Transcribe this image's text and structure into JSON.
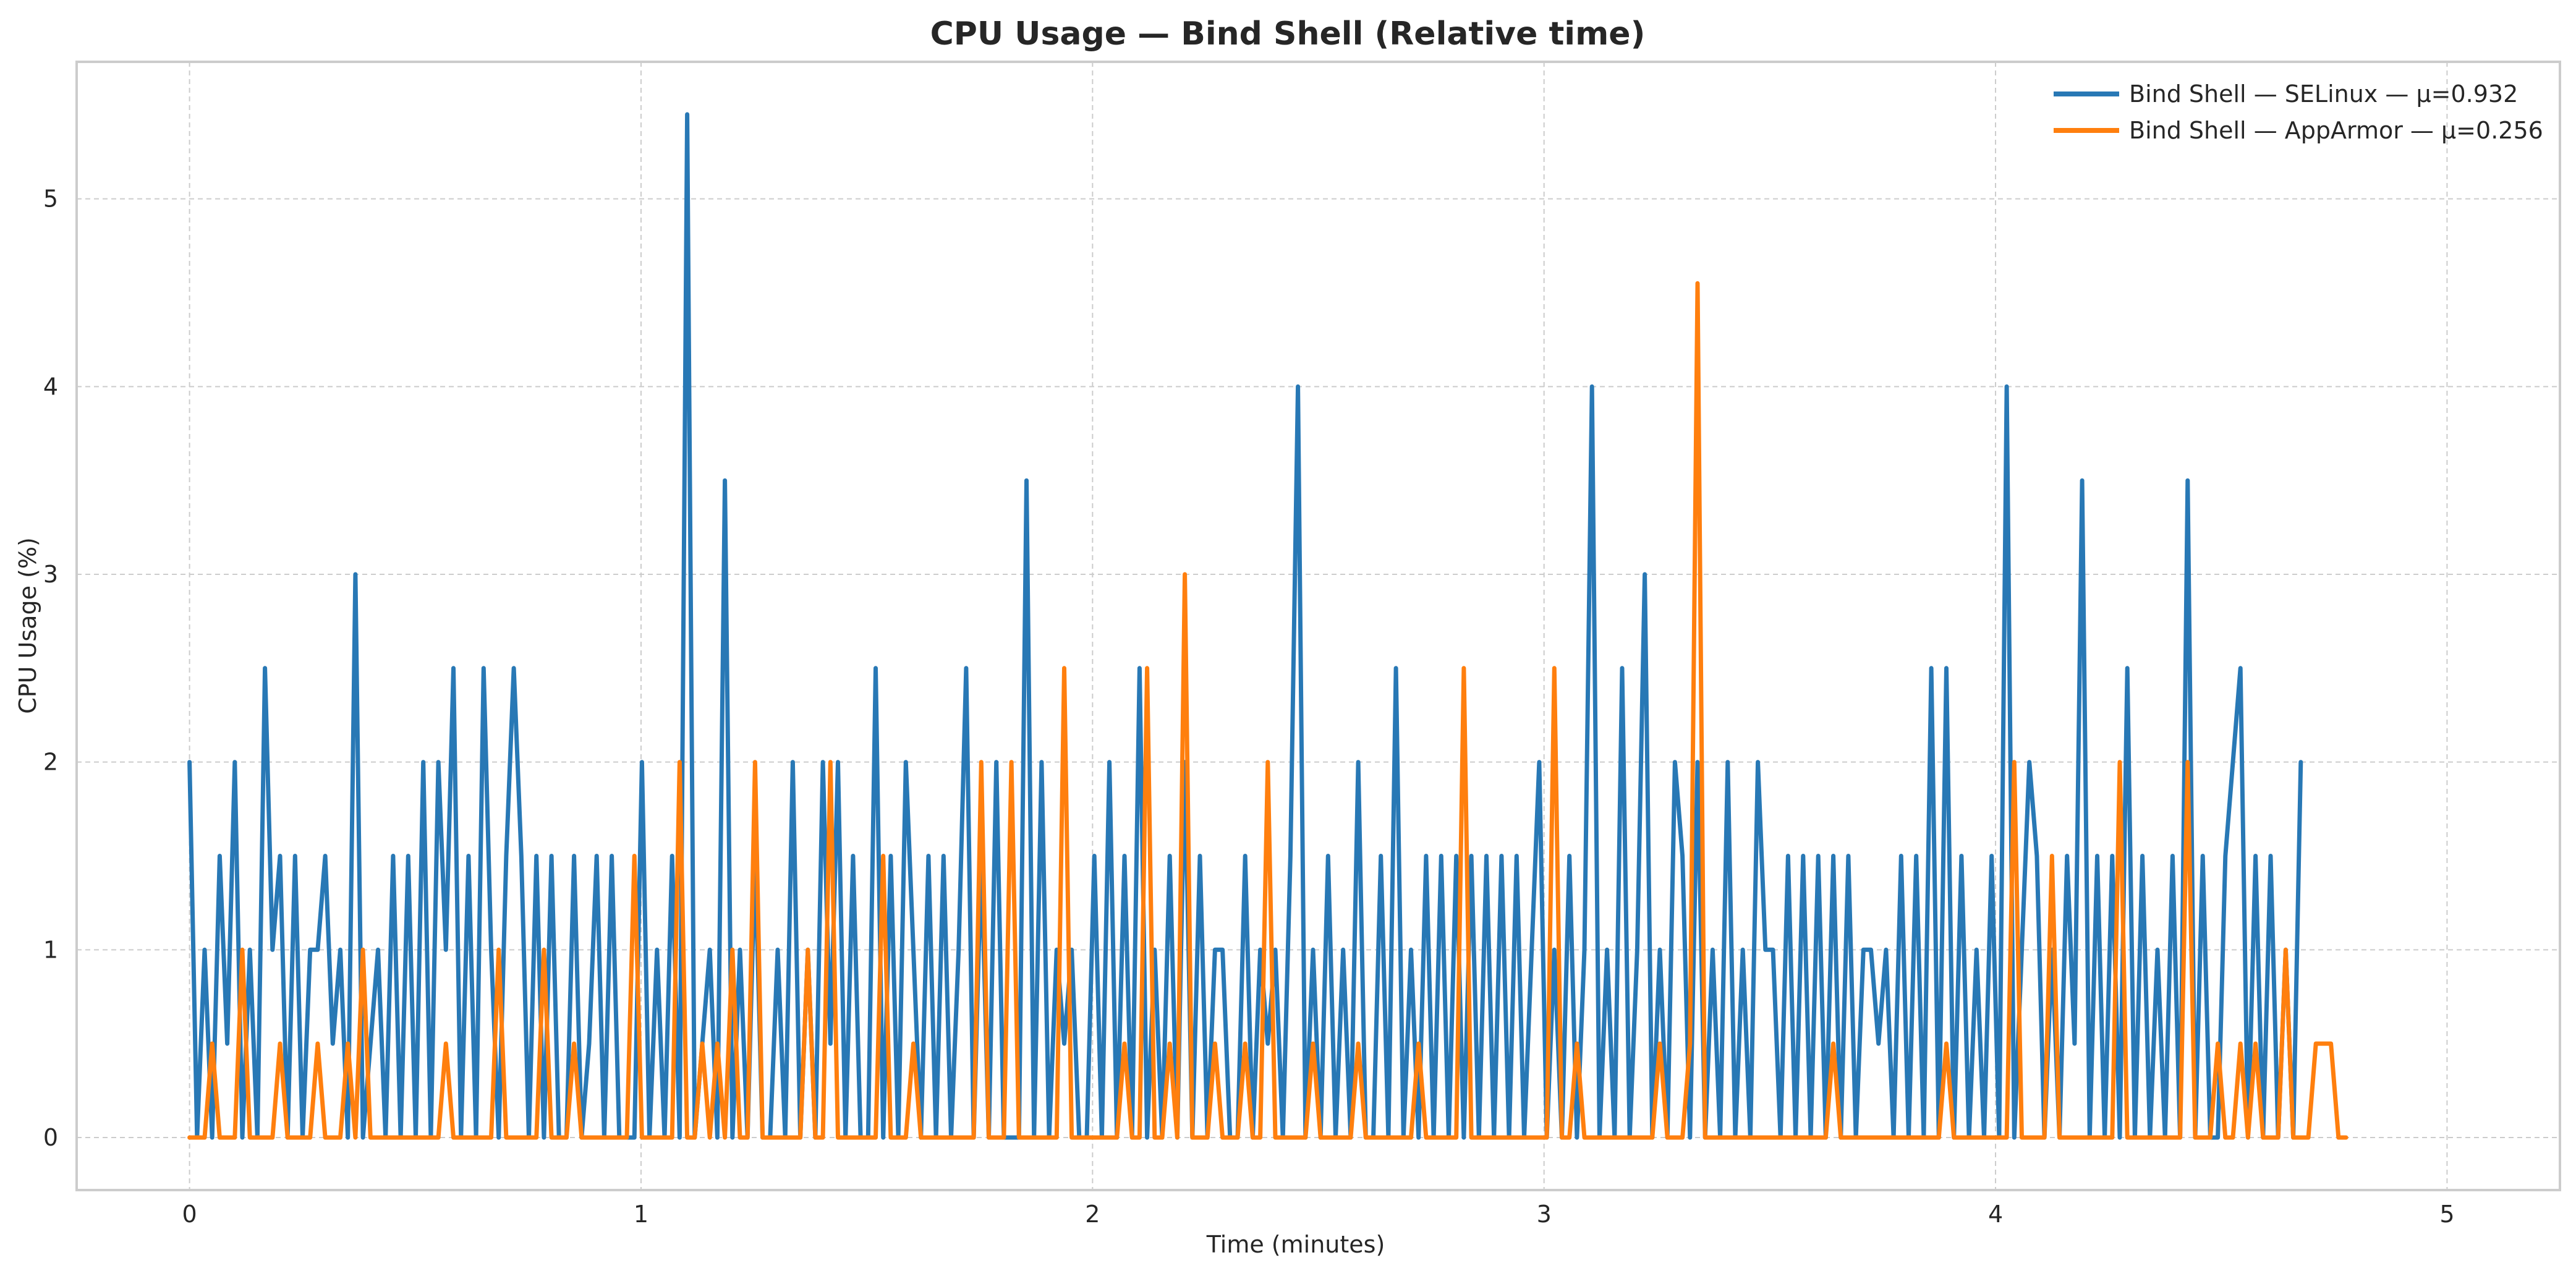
{
  "chart_data": {
    "type": "line",
    "title": "CPU Usage — Bind Shell (Relative time)",
    "xlabel": "Time (minutes)",
    "ylabel": "CPU Usage (%)",
    "xlim": [
      -0.25,
      5.25
    ],
    "ylim": [
      -0.28,
      5.73
    ],
    "x_ticks": [
      0,
      1,
      2,
      3,
      4,
      5
    ],
    "y_ticks": [
      0,
      1,
      2,
      3,
      4,
      5
    ],
    "grid": true,
    "legend_position": "top-right",
    "x_step": 0.0167,
    "series": [
      {
        "name": "Bind Shell — SELinux — μ=0.932",
        "color": "#2878b5",
        "values": [
          2.0,
          0,
          1.0,
          0,
          1.5,
          0.5,
          2.0,
          0,
          1.0,
          0,
          2.5,
          1.0,
          1.5,
          0,
          1.5,
          0,
          1.0,
          1.0,
          1.5,
          0.5,
          1.0,
          0,
          3.0,
          0,
          0.5,
          1.0,
          0,
          1.5,
          0,
          1.5,
          0,
          2.0,
          0,
          2.0,
          1.0,
          2.5,
          0,
          1.5,
          0,
          2.5,
          1.0,
          0,
          1.5,
          2.5,
          1.5,
          0,
          1.5,
          0,
          1.5,
          0,
          0,
          1.5,
          0,
          0.5,
          1.5,
          0,
          1.5,
          0,
          0,
          0,
          2.0,
          0,
          1.0,
          0,
          1.5,
          0,
          5.45,
          0,
          0.5,
          1.0,
          0,
          3.5,
          0,
          1.0,
          0,
          1.5,
          0,
          0,
          1.0,
          0,
          2.0,
          0,
          1.0,
          0,
          2.0,
          0.5,
          2.0,
          0,
          1.5,
          0,
          0,
          2.5,
          0,
          1.5,
          0,
          2.0,
          1.0,
          0,
          1.5,
          0,
          1.5,
          0,
          1.0,
          2.5,
          0,
          1.5,
          0,
          2.0,
          0,
          0,
          0,
          3.5,
          0,
          2.0,
          0,
          1.0,
          0.5,
          1.0,
          0,
          0,
          1.5,
          0,
          2.0,
          0,
          1.5,
          0,
          2.5,
          0,
          1.0,
          0,
          1.5,
          0,
          2.0,
          0,
          1.5,
          0,
          1.0,
          1.0,
          0,
          0,
          1.5,
          0,
          1.0,
          0.5,
          1.0,
          0,
          1.5,
          4.0,
          0,
          1.0,
          0,
          1.5,
          0,
          1.0,
          0,
          2.0,
          0,
          0,
          1.5,
          0,
          2.5,
          0,
          1.0,
          0,
          1.5,
          0,
          1.5,
          0,
          1.5,
          0,
          1.5,
          0,
          1.5,
          0,
          1.5,
          0,
          1.5,
          0,
          1.0,
          2.0,
          0,
          1.0,
          0,
          1.5,
          0,
          1.0,
          4.0,
          0,
          1.0,
          0,
          2.5,
          0,
          1.0,
          3.0,
          0,
          1.0,
          0,
          2.0,
          1.5,
          0,
          2.0,
          0,
          1.0,
          0,
          2.0,
          0,
          1.0,
          0,
          2.0,
          1.0,
          1.0,
          0,
          1.5,
          0,
          1.5,
          0,
          1.5,
          0,
          1.5,
          0,
          1.5,
          0,
          1.0,
          1.0,
          0.5,
          1.0,
          0,
          1.5,
          0,
          1.5,
          0,
          2.5,
          0,
          2.5,
          0,
          1.5,
          0,
          1.0,
          0,
          1.5,
          0,
          4.0,
          0,
          1.0,
          2.0,
          1.5,
          0,
          1.0,
          0,
          1.5,
          0.5,
          3.5,
          0,
          1.5,
          0,
          1.5,
          0,
          2.5,
          0,
          1.5,
          0,
          1.0,
          0,
          1.5,
          0,
          3.5,
          0,
          1.5,
          0,
          0,
          1.5,
          2.0,
          2.5,
          0,
          1.5,
          0,
          1.5,
          0,
          1.0,
          0,
          2.0
        ]
      },
      {
        "name": "Bind Shell — AppArmor — μ=0.256",
        "color": "#ff7f0e",
        "values": [
          0,
          0,
          0,
          0.5,
          0,
          0,
          0,
          1.0,
          0,
          0,
          0,
          0,
          0.5,
          0,
          0,
          0,
          0,
          0.5,
          0,
          0,
          0,
          0.5,
          0,
          1.0,
          0,
          0,
          0,
          0,
          0,
          0,
          0,
          0,
          0,
          0,
          0.5,
          0,
          0,
          0,
          0,
          0,
          0,
          1.0,
          0,
          0,
          0,
          0,
          0,
          1.0,
          0,
          0,
          0,
          0.5,
          0,
          0,
          0,
          0,
          0,
          0,
          0,
          1.5,
          0,
          0,
          0,
          0,
          0,
          2.0,
          0,
          0,
          0.5,
          0,
          0.5,
          0,
          1.0,
          0,
          0,
          2.0,
          0,
          0,
          0,
          0,
          0,
          0,
          1.0,
          0,
          0,
          2.0,
          0,
          0,
          0,
          0,
          0,
          0,
          1.5,
          0,
          0,
          0,
          0.5,
          0,
          0,
          0,
          0,
          0,
          0,
          0,
          0,
          2.0,
          0,
          0,
          0,
          2.0,
          0,
          0,
          0,
          0,
          0,
          0,
          2.5,
          0,
          0,
          0,
          0,
          0,
          0,
          0,
          0.5,
          0,
          0,
          2.5,
          0,
          0,
          0.5,
          0,
          3.0,
          0,
          0,
          0,
          0.5,
          0,
          0,
          0,
          0.5,
          0,
          0,
          2.0,
          0,
          0,
          0,
          0,
          0,
          0.5,
          0,
          0,
          0,
          0,
          0,
          0.5,
          0,
          0,
          0,
          0,
          0,
          0,
          0,
          0.5,
          0,
          0,
          0,
          0,
          0,
          2.5,
          0,
          0,
          0,
          0,
          0,
          0,
          0,
          0,
          0,
          0,
          0,
          2.5,
          0,
          0,
          0.5,
          0,
          0,
          0,
          0,
          0,
          0,
          0,
          0,
          0,
          0,
          0.5,
          0,
          0,
          0,
          0.5,
          4.55,
          0,
          0,
          0,
          0,
          0,
          0,
          0,
          0,
          0,
          0,
          0,
          0,
          0,
          0,
          0,
          0,
          0,
          0.5,
          0,
          0,
          0,
          0,
          0,
          0,
          0,
          0,
          0,
          0,
          0,
          0,
          0,
          0,
          0.5,
          0,
          0,
          0,
          0,
          0,
          0,
          0,
          0,
          2.0,
          0,
          0,
          0,
          0,
          1.5,
          0,
          0,
          0,
          0,
          0,
          0,
          0,
          0,
          2.0,
          0,
          0,
          0,
          0,
          0,
          0,
          0,
          0,
          2.0,
          0,
          0,
          0,
          0.5,
          0,
          0,
          0.5,
          0,
          0.5,
          0,
          0,
          0,
          1.0,
          0,
          0,
          0,
          0.5,
          0.5,
          0.5,
          0,
          0
        ]
      }
    ]
  }
}
